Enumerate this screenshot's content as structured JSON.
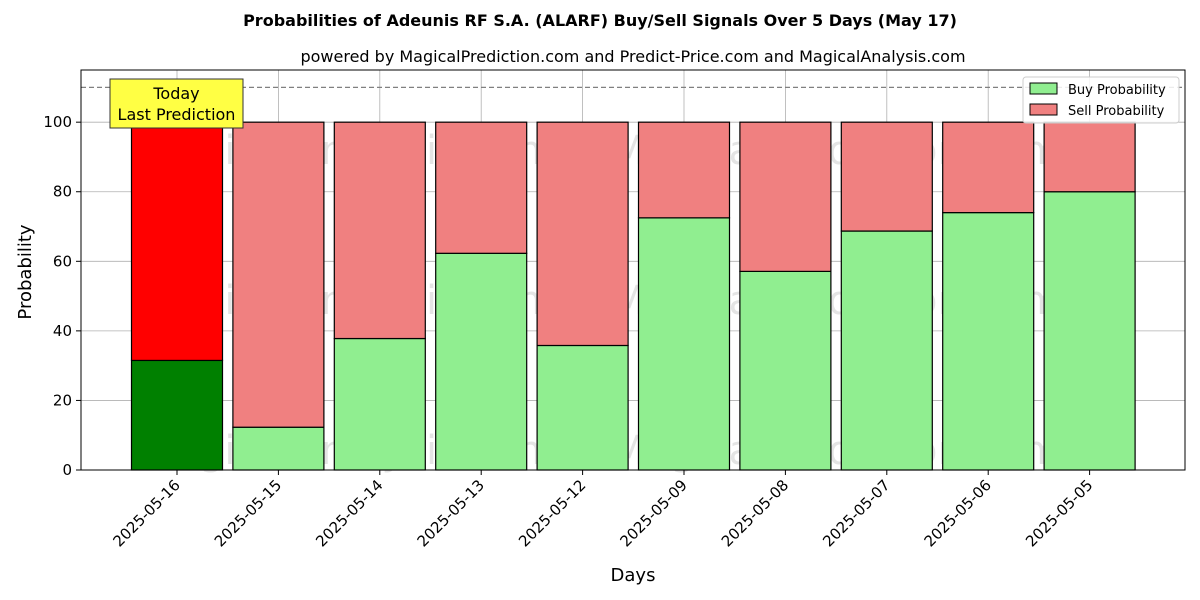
{
  "chart_data": {
    "type": "bar",
    "title": "Probabilities of Adeunis RF S.A. (ALARF) Buy/Sell Signals Over 5 Days (May 17)",
    "subtitle": "powered by MagicalPrediction.com and Predict-Price.com and MagicalAnalysis.com",
    "xlabel": "Days",
    "ylabel": "Probability",
    "ylim": [
      0,
      115
    ],
    "yticks": [
      0,
      20,
      40,
      60,
      80,
      100
    ],
    "grid": true,
    "stacked": true,
    "reference_line": 110,
    "legend_placement": "top-right",
    "categories": [
      "2025-05-16",
      "2025-05-15",
      "2025-05-14",
      "2025-05-13",
      "2025-05-12",
      "2025-05-09",
      "2025-05-08",
      "2025-05-07",
      "2025-05-06",
      "2025-05-05"
    ],
    "series": [
      {
        "name": "Buy Probability",
        "values": [
          31.5,
          12.3,
          37.8,
          62.3,
          35.8,
          72.5,
          57.1,
          68.7,
          74.0,
          80.0
        ],
        "color": "#90ee90",
        "highlight_color": "#008000"
      },
      {
        "name": "Sell Probability",
        "values": [
          68.5,
          87.7,
          62.2,
          37.7,
          64.2,
          27.5,
          42.9,
          31.3,
          26.0,
          20.0
        ],
        "color": "#f08080",
        "highlight_color": "#ff0000"
      }
    ],
    "highlight_index": 0,
    "annotation": {
      "lines": [
        "Today",
        "Last Prediction"
      ],
      "color": "#ffff44"
    },
    "watermarks": [
      "MagicalAnalysis.com",
      "MagicalPrediction.com",
      "MagicalAnalysis.com",
      "MagicalPrediction.com",
      "MagicalAnalysis.com",
      "MagicalPrediction.com"
    ]
  }
}
